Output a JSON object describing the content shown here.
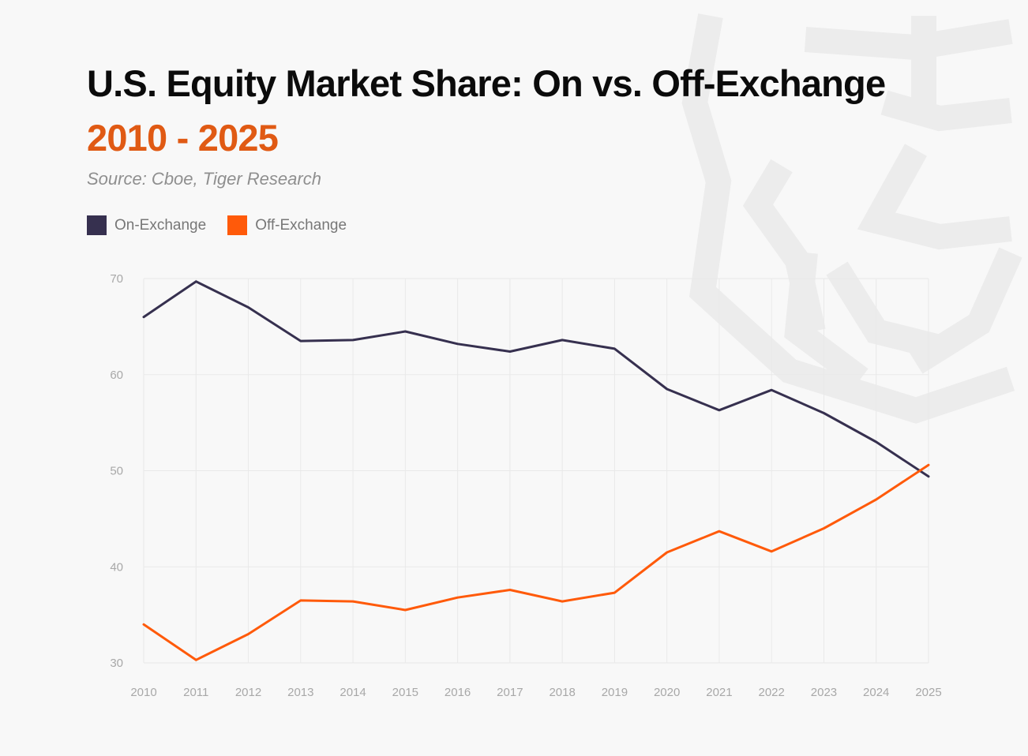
{
  "title": "U.S. Equity Market Share: On vs. Off-Exchange",
  "subtitle": "2010 - 2025",
  "source": "Source: Cboe, Tiger Research",
  "colors": {
    "on_exchange": "#36304f",
    "off_exchange": "#ff5a0a",
    "title": "#0b0b0b",
    "subtitle": "#e05a14",
    "grid": "#e9e9e9",
    "background": "#f8f8f8"
  },
  "legend": {
    "on_label": "On-Exchange",
    "off_label": "Off-Exchange"
  },
  "chart_data": {
    "type": "line",
    "title": "U.S. Equity Market Share: On vs. Off-Exchange",
    "subtitle": "2010 - 2025",
    "xlabel": "",
    "ylabel": "",
    "categories": [
      "2010",
      "2011",
      "2012",
      "2013",
      "2014",
      "2015",
      "2016",
      "2017",
      "2018",
      "2019",
      "2020",
      "2021",
      "2022",
      "2023",
      "2024",
      "2025"
    ],
    "yticks": [
      30,
      40,
      50,
      60,
      70
    ],
    "ylim": [
      30,
      70
    ],
    "grid": true,
    "legend_position": "top-left",
    "series": [
      {
        "name": "On-Exchange",
        "color": "#36304f",
        "values": [
          66.0,
          69.7,
          67.0,
          63.5,
          63.6,
          64.5,
          63.2,
          62.4,
          63.6,
          62.7,
          58.5,
          56.3,
          58.4,
          56.0,
          53.0,
          49.4
        ]
      },
      {
        "name": "Off-Exchange",
        "color": "#ff5a0a",
        "values": [
          34.0,
          30.3,
          33.0,
          36.5,
          36.4,
          35.5,
          36.8,
          37.6,
          36.4,
          37.3,
          41.5,
          43.7,
          41.6,
          44.0,
          47.0,
          50.6
        ]
      }
    ]
  }
}
